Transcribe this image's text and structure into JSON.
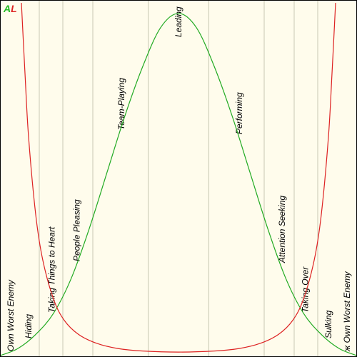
{
  "brand": {
    "letter_a": "A",
    "letter_l": "L",
    "color_a": "#22bb22",
    "color_l": "#dd2222"
  },
  "chart_data": {
    "type": "line",
    "title": "",
    "xlabel": "",
    "ylabel": "",
    "xlim": [
      0,
      1
    ],
    "ylim": [
      0,
      1
    ],
    "grid": "vertical",
    "background": "#fffcec",
    "zones": [
      {
        "label": "Own Worst Enemy",
        "x": 0.03
      },
      {
        "label": "Hiding",
        "x": 0.08
      },
      {
        "label": "Taking Things to Heart",
        "x": 0.145
      },
      {
        "label": "People Pleasing",
        "x": 0.215
      },
      {
        "label": "Team-Playing",
        "x": 0.34
      },
      {
        "label": "Leading",
        "x": 0.5
      },
      {
        "label": "Performing",
        "x": 0.67
      },
      {
        "label": "Attention Seeking",
        "x": 0.79
      },
      {
        "label": "Taking Over",
        "x": 0.855
      },
      {
        "label": "Sulking",
        "x": 0.92
      },
      {
        "label": "ж Own Worst Enemy",
        "x": 0.972
      }
    ],
    "gridlines_x": [
      0.11,
      0.176,
      0.26,
      0.415,
      0.585,
      0.74,
      0.824,
      0.89
    ],
    "series": [
      {
        "color": "#22aa22",
        "x": [
          0.0,
          0.05,
          0.1,
          0.15,
          0.2,
          0.25,
          0.3,
          0.35,
          0.4,
          0.45,
          0.5,
          0.55,
          0.6,
          0.65,
          0.7,
          0.75,
          0.8,
          0.85,
          0.9,
          0.95,
          1.0
        ],
        "y": [
          0.0,
          0.02,
          0.06,
          0.12,
          0.22,
          0.36,
          0.52,
          0.68,
          0.82,
          0.93,
          0.97,
          0.93,
          0.82,
          0.68,
          0.52,
          0.36,
          0.22,
          0.12,
          0.06,
          0.02,
          0.0
        ]
      },
      {
        "color": "#dd2222",
        "x": [
          0.06,
          0.07,
          0.08,
          0.1,
          0.12,
          0.15,
          0.18,
          0.22,
          0.27,
          0.33,
          0.4,
          0.5,
          0.6,
          0.67,
          0.73,
          0.78,
          0.82,
          0.85,
          0.88,
          0.9,
          0.92,
          0.93,
          0.94
        ],
        "y": [
          1.0,
          0.8,
          0.62,
          0.4,
          0.27,
          0.16,
          0.1,
          0.06,
          0.035,
          0.02,
          0.013,
          0.01,
          0.013,
          0.02,
          0.035,
          0.06,
          0.1,
          0.16,
          0.27,
          0.4,
          0.62,
          0.8,
          1.0
        ]
      }
    ]
  }
}
